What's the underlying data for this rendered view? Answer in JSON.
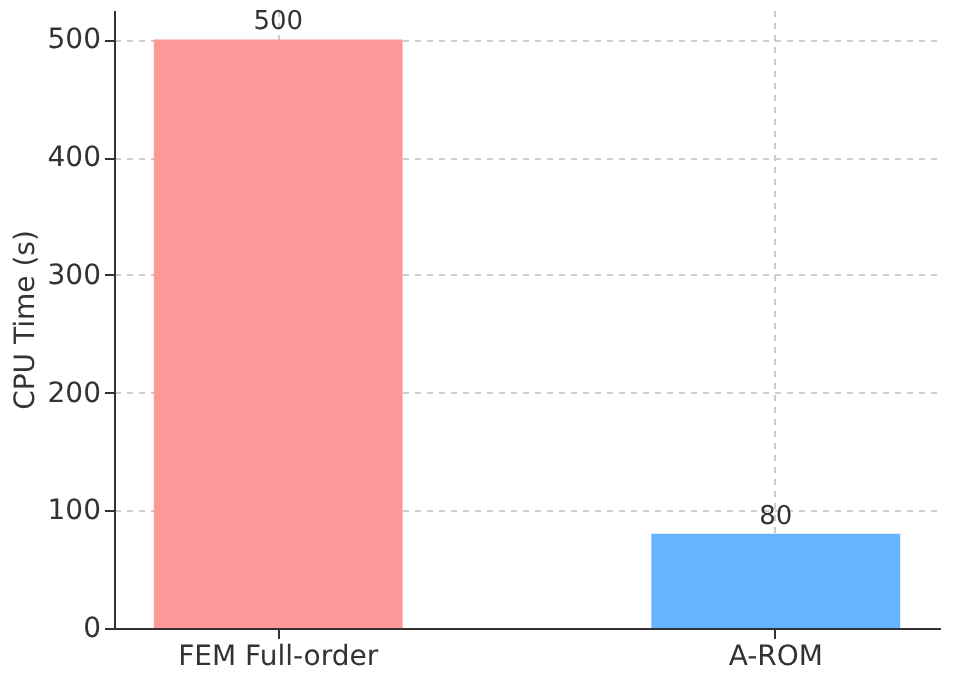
{
  "chart_data": {
    "type": "bar",
    "ylabel": "CPU Time (s)",
    "categories": [
      "FEM Full-order",
      "A-ROM"
    ],
    "values": [
      500,
      80
    ],
    "colors": [
      "#ff9999",
      "#66b3ff"
    ],
    "ylim": [
      0,
      525
    ],
    "yticks": [
      0,
      100,
      200,
      300,
      400,
      500
    ],
    "grid": true,
    "data_labels": true
  }
}
